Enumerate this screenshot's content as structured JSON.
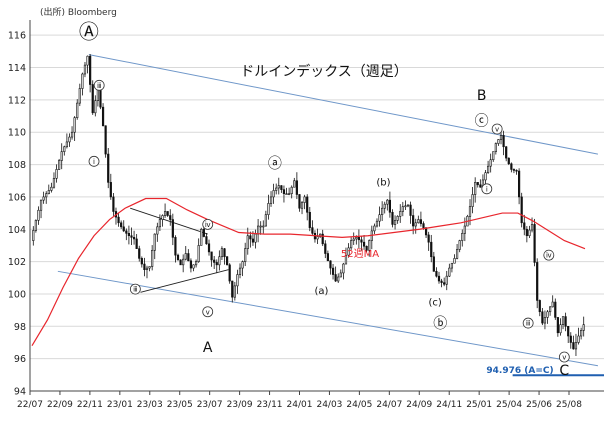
{
  "source_note": "(出所) Bloomberg",
  "chart_data": {
    "type": "candlestick",
    "title": "ドルインデックス（週足）",
    "xlabel": "",
    "ylabel": "",
    "ylim": [
      94,
      117
    ],
    "yticks": [
      94,
      96,
      98,
      100,
      102,
      104,
      106,
      108,
      110,
      112,
      114,
      116
    ],
    "x_tick_labels": [
      "22/07",
      "22/09",
      "22/11",
      "23/01",
      "23/03",
      "23/05",
      "23/07",
      "23/09",
      "23/11",
      "24/01",
      "24/03",
      "24/05",
      "24/07",
      "24/09",
      "24/11",
      "25/01",
      "25/04",
      "25/06",
      "25/08"
    ],
    "x_range": [
      0,
      107
    ],
    "grid": "horizontal",
    "colors": {
      "up": "#e8e8e8",
      "down": "#111111",
      "ma": "#e8262d",
      "channel": "#6f97c9",
      "level": "#1f5fb0",
      "triangle": "#222222"
    },
    "price_path": [
      [
        0,
        103.3
      ],
      [
        2,
        105.8
      ],
      [
        4,
        106.6
      ],
      [
        6,
        108.8
      ],
      [
        8,
        110.0
      ],
      [
        10,
        113.6
      ],
      [
        11,
        114.7
      ],
      [
        12,
        111.2
      ],
      [
        13,
        112.7
      ],
      [
        14,
        110.4
      ],
      [
        15,
        106.9
      ],
      [
        16,
        105.1
      ],
      [
        17,
        104.4
      ],
      [
        18,
        103.9
      ],
      [
        19,
        103.6
      ],
      [
        20,
        103.4
      ],
      [
        21,
        102.2
      ],
      [
        22,
        101.5
      ],
      [
        23,
        101.7
      ],
      [
        24,
        103.7
      ],
      [
        25,
        104.6
      ],
      [
        26,
        105.1
      ],
      [
        27,
        104.6
      ],
      [
        28,
        102.4
      ],
      [
        29,
        101.8
      ],
      [
        30,
        102.5
      ],
      [
        31,
        101.6
      ],
      [
        32,
        102.0
      ],
      [
        33,
        104.0
      ],
      [
        34,
        103.1
      ],
      [
        35,
        102.1
      ],
      [
        36,
        101.8
      ],
      [
        37,
        102.8
      ],
      [
        38,
        101.8
      ],
      [
        39,
        99.8
      ],
      [
        40,
        101.2
      ],
      [
        41,
        102.0
      ],
      [
        42,
        103.6
      ],
      [
        43,
        103.2
      ],
      [
        44,
        104.2
      ],
      [
        45,
        104.2
      ],
      [
        46,
        105.6
      ],
      [
        47,
        106.4
      ],
      [
        48,
        106.7
      ],
      [
        49,
        106.2
      ],
      [
        50,
        106.2
      ],
      [
        51,
        107.0
      ],
      [
        52,
        105.3
      ],
      [
        53,
        106.0
      ],
      [
        54,
        104.1
      ],
      [
        55,
        103.4
      ],
      [
        56,
        103.7
      ],
      [
        57,
        102.5
      ],
      [
        58,
        101.6
      ],
      [
        59,
        100.8
      ],
      [
        60,
        101.3
      ],
      [
        61,
        102.4
      ],
      [
        62,
        103.3
      ],
      [
        63,
        103.5
      ],
      [
        64,
        103.2
      ],
      [
        65,
        102.7
      ],
      [
        66,
        103.9
      ],
      [
        67,
        104.5
      ],
      [
        68,
        105.3
      ],
      [
        69,
        105.8
      ],
      [
        70,
        104.3
      ],
      [
        71,
        104.8
      ],
      [
        72,
        105.4
      ],
      [
        73,
        105.5
      ],
      [
        74,
        104.2
      ],
      [
        75,
        104.6
      ],
      [
        76,
        104.1
      ],
      [
        77,
        103.2
      ],
      [
        78,
        101.4
      ],
      [
        79,
        100.8
      ],
      [
        80,
        100.6
      ],
      [
        81,
        101.6
      ],
      [
        82,
        102.2
      ],
      [
        83,
        103.3
      ],
      [
        84,
        104.2
      ],
      [
        85,
        105.4
      ],
      [
        86,
        106.9
      ],
      [
        87,
        106.6
      ],
      [
        88,
        107.5
      ],
      [
        89,
        108.3
      ],
      [
        90,
        109.3
      ],
      [
        91,
        109.8
      ],
      [
        92,
        108.4
      ],
      [
        93,
        107.7
      ],
      [
        94,
        107.6
      ],
      [
        95,
        104.4
      ],
      [
        96,
        103.6
      ],
      [
        97,
        104.3
      ],
      [
        98,
        99.6
      ],
      [
        99,
        98.2
      ],
      [
        100,
        98.9
      ],
      [
        101,
        99.5
      ],
      [
        102,
        97.6
      ],
      [
        103,
        98.6
      ],
      [
        104,
        97.4
      ],
      [
        105,
        96.6
      ],
      [
        106,
        97.4
      ],
      [
        107,
        98.1
      ]
    ],
    "ma_label": "52週MA",
    "ma_path": [
      [
        0,
        96.8
      ],
      [
        3,
        98.4
      ],
      [
        6,
        100.4
      ],
      [
        9,
        102.2
      ],
      [
        12,
        103.6
      ],
      [
        15,
        104.6
      ],
      [
        18,
        105.3
      ],
      [
        22,
        105.9
      ],
      [
        26,
        105.9
      ],
      [
        30,
        105.2
      ],
      [
        34,
        104.6
      ],
      [
        40,
        103.8
      ],
      [
        45,
        103.7
      ],
      [
        50,
        103.7
      ],
      [
        55,
        103.6
      ],
      [
        60,
        103.5
      ],
      [
        65,
        103.6
      ],
      [
        70,
        103.8
      ],
      [
        75,
        104.0
      ],
      [
        79,
        104.2
      ],
      [
        83,
        104.4
      ],
      [
        87,
        104.7
      ],
      [
        91,
        105.0
      ],
      [
        94,
        105.0
      ],
      [
        97,
        104.5
      ],
      [
        100,
        103.9
      ],
      [
        103,
        103.3
      ],
      [
        107,
        102.8
      ]
    ],
    "channel_upper": [
      [
        11,
        114.8
      ],
      [
        107,
        108.8
      ]
    ],
    "channel_lower": [
      [
        5,
        101.4
      ],
      [
        107,
        95.7
      ]
    ],
    "support_level": {
      "value": 94.976,
      "label": "94.976 (A=C)"
    },
    "triangle_lines": [
      {
        "from": [
          19,
          105.3
        ],
        "to": [
          34,
          103.7
        ]
      },
      {
        "from": [
          21,
          100.1
        ],
        "to": [
          38,
          101.5
        ]
      }
    ],
    "wave_labels": [
      {
        "text": "Ⓐ",
        "x": 11,
        "y": 115.8,
        "size": 20
      },
      {
        "text": "A",
        "x": 34,
        "y": 96.4,
        "size": 14
      },
      {
        "text": "ⓐ",
        "x": 47,
        "y": 107.8,
        "size": 14
      },
      {
        "text": "(a)",
        "x": 56,
        "y": 100.0,
        "size": 10
      },
      {
        "text": "(b)",
        "x": 68,
        "y": 106.7,
        "size": 10
      },
      {
        "text": "(c)",
        "x": 78,
        "y": 99.3,
        "size": 10
      },
      {
        "text": "ⓑ",
        "x": 79,
        "y": 97.9,
        "size": 14
      },
      {
        "text": "B",
        "x": 87,
        "y": 112.0,
        "size": 14
      },
      {
        "text": "ⓒ",
        "x": 87,
        "y": 110.4,
        "size": 14
      },
      {
        "text": "C",
        "x": 103,
        "y": 95.0,
        "size": 14
      }
    ],
    "roman_markers": [
      {
        "text": "ⅲ",
        "x": 13,
        "y": 112.9
      },
      {
        "text": "ⅰ",
        "x": 12,
        "y": 108.2
      },
      {
        "text": "ⅴ",
        "x": 34,
        "y": 98.9
      },
      {
        "text": "ⅲ",
        "x": 20,
        "y": 100.3
      },
      {
        "text": "ⅳ",
        "x": 34,
        "y": 104.3
      },
      {
        "text": "ⅴ",
        "x": 90,
        "y": 110.2
      },
      {
        "text": "ⅰ",
        "x": 88,
        "y": 106.5
      },
      {
        "text": "ⅲ",
        "x": 96,
        "y": 98.2
      },
      {
        "text": "ⅳ",
        "x": 100,
        "y": 102.4
      },
      {
        "text": "ⅴ",
        "x": 103,
        "y": 96.1
      }
    ]
  }
}
